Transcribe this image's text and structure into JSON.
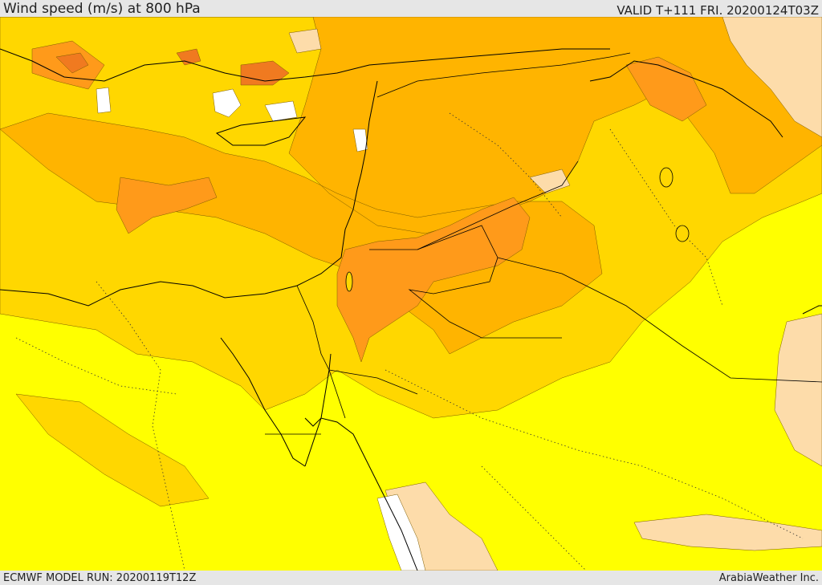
{
  "header": {
    "title": "Wind speed (m/s) at 800 hPa",
    "valid": "VALID T+111 FRI. 20200124T03Z"
  },
  "footer": {
    "model_run": "ECMWF MODEL RUN: 20200119T12Z",
    "credit": "ArabiaWeather Inc."
  },
  "colors": {
    "lowest_band": "#ffffff",
    "low_band": "#fddcaa",
    "mid_band": "#ffff00",
    "upper_band": "#ffd700",
    "high_band": "#ffb400",
    "highest_band": "#ff9a1a",
    "peak_band": "#f07a20",
    "coastline": "#000000"
  }
}
